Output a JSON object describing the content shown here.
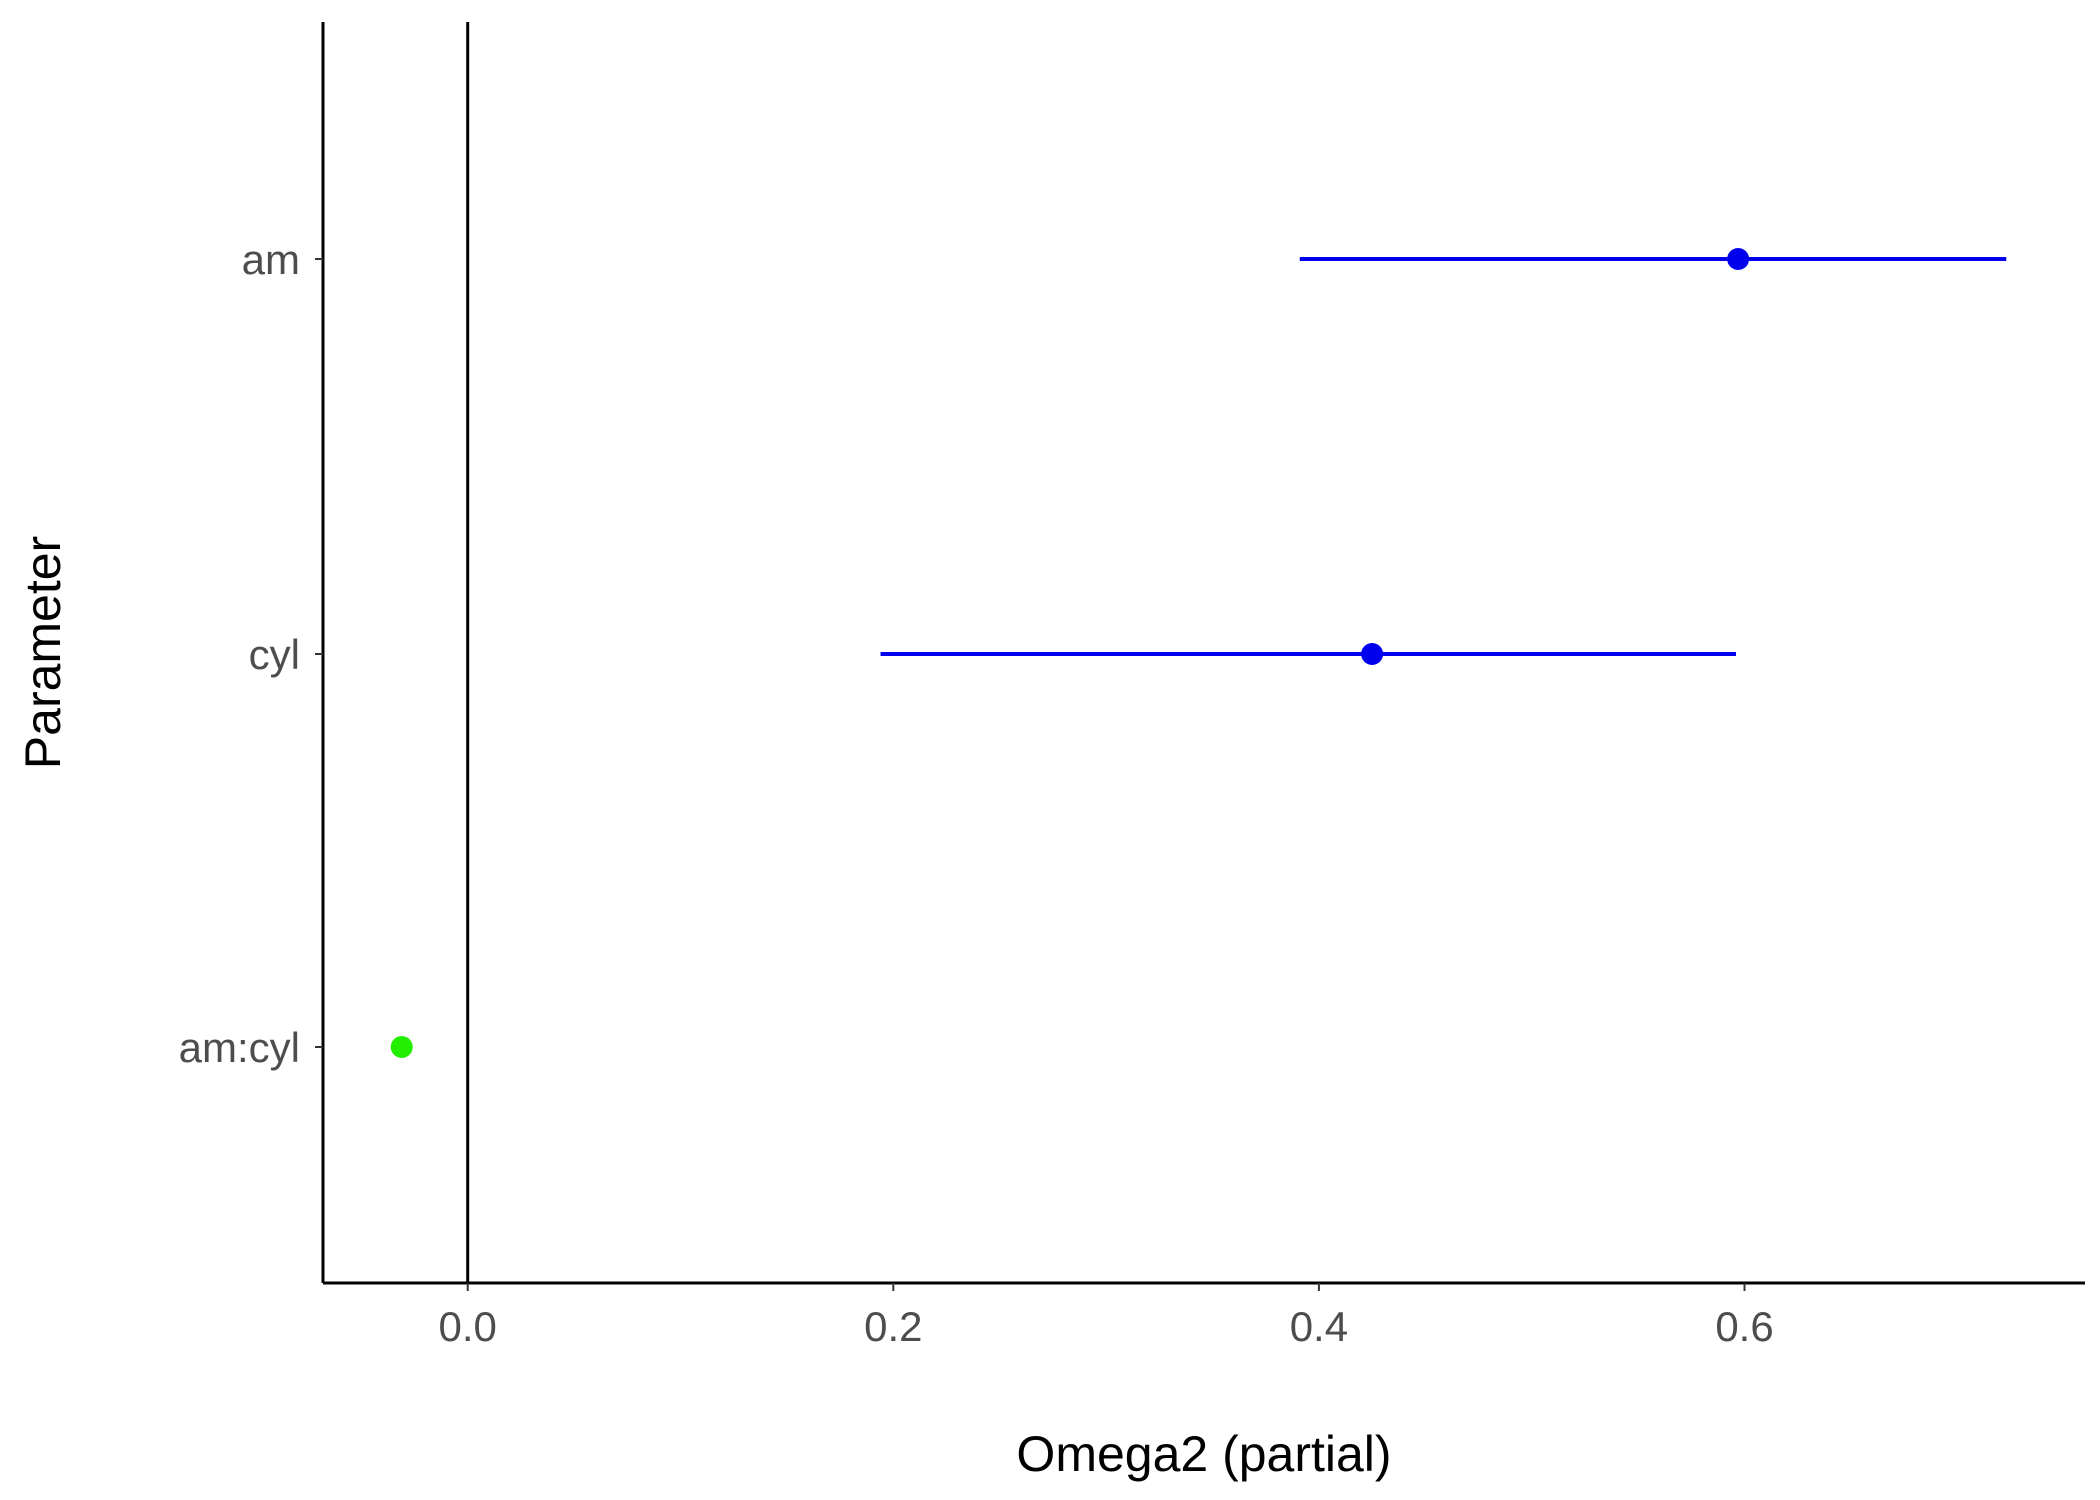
{
  "chart_data": {
    "type": "scatter",
    "xlabel": "Omega2 (partial)",
    "ylabel": "Parameter",
    "xlim": [
      -0.068,
      0.76
    ],
    "x_ticks": [
      0.0,
      0.2,
      0.4,
      0.6
    ],
    "x_tick_labels": [
      "0.0",
      "0.2",
      "0.4",
      "0.6"
    ],
    "categories": [
      "am",
      "cyl",
      "am:cyl"
    ],
    "points": [
      {
        "parameter": "am",
        "estimate": 0.597,
        "ci_low": 0.391,
        "ci_high": 0.723,
        "color": "#0000ee"
      },
      {
        "parameter": "cyl",
        "estimate": 0.425,
        "ci_low": 0.194,
        "ci_high": 0.596,
        "color": "#0000ee"
      },
      {
        "parameter": "am:cyl",
        "estimate": -0.031,
        "color": "#22ee00"
      }
    ],
    "reference_line_x": 0,
    "grid": false
  }
}
